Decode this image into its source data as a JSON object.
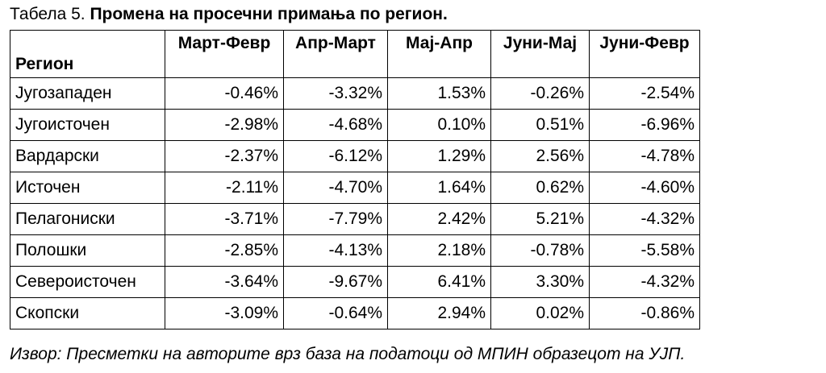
{
  "caption": {
    "prefix": "Табела 5. ",
    "title": "Промена на просечни примања по регион."
  },
  "table": {
    "region_header": "Регион",
    "columns": [
      "Март-Февр",
      "Апр-Март",
      "Мај-Апр",
      "Јуни-Мај",
      "Јуни-Февр"
    ],
    "rows": [
      {
        "region": "Југозападен",
        "values": [
          "-0.46%",
          "-3.32%",
          "1.53%",
          "-0.26%",
          "-2.54%"
        ]
      },
      {
        "region": "Југоисточен",
        "values": [
          "-2.98%",
          "-4.68%",
          "0.10%",
          "0.51%",
          "-6.96%"
        ]
      },
      {
        "region": "Вардарски",
        "values": [
          "-2.37%",
          "-6.12%",
          "1.29%",
          "2.56%",
          "-4.78%"
        ]
      },
      {
        "region": "Источен",
        "values": [
          "-2.11%",
          "-4.70%",
          "1.64%",
          "0.62%",
          "-4.60%"
        ]
      },
      {
        "region": "Пелагониски",
        "values": [
          "-3.71%",
          "-7.79%",
          "2.42%",
          "5.21%",
          "-4.32%"
        ]
      },
      {
        "region": "Полошки",
        "values": [
          "-2.85%",
          "-4.13%",
          "2.18%",
          "-0.78%",
          "-5.58%"
        ]
      },
      {
        "region": "Североисточен",
        "values": [
          "-3.64%",
          "-9.67%",
          "6.41%",
          "3.30%",
          "-4.32%"
        ]
      },
      {
        "region": "Скопски",
        "values": [
          "-3.09%",
          "-0.64%",
          "2.94%",
          "0.02%",
          "-0.86%"
        ]
      }
    ]
  },
  "source": "Извор: Пресметки на авторите врз база на податоци од МПИН образецот на УЈП."
}
